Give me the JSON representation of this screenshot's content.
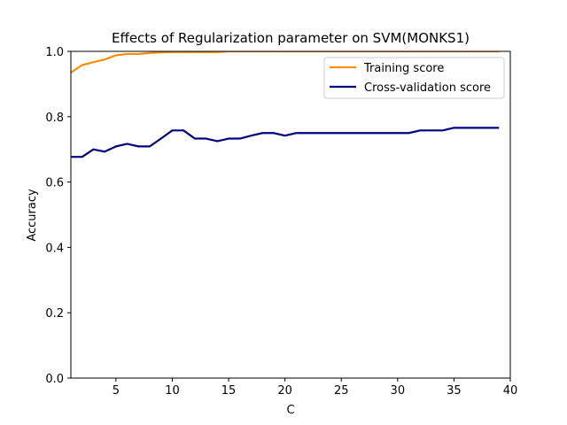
{
  "chart_data": {
    "type": "line",
    "title": "Effects of Regularization parameter on SVM(MONKS1)",
    "xlabel": "C",
    "ylabel": "Accuracy",
    "xlim": [
      1,
      40
    ],
    "ylim": [
      0.0,
      1.0
    ],
    "xticks": [
      5,
      10,
      15,
      20,
      25,
      30,
      35,
      40
    ],
    "yticks": [
      0.0,
      0.2,
      0.4,
      0.6,
      0.8,
      1.0
    ],
    "xtick_labels": [
      "5",
      "10",
      "15",
      "20",
      "25",
      "30",
      "35",
      "40"
    ],
    "ytick_labels": [
      "0.0",
      "0.2",
      "0.4",
      "0.6",
      "0.8",
      "1.0"
    ],
    "grid": false,
    "legend_position": "top-right",
    "x": [
      1,
      2,
      3,
      4,
      5,
      6,
      7,
      8,
      9,
      10,
      11,
      12,
      13,
      14,
      15,
      16,
      17,
      18,
      19,
      20,
      21,
      22,
      23,
      24,
      25,
      26,
      27,
      28,
      29,
      30,
      31,
      32,
      33,
      34,
      35,
      36,
      37,
      38,
      39
    ],
    "series": [
      {
        "name": "Training score",
        "color": "#ff8c00",
        "values": [
          0.935,
          0.958,
          0.967,
          0.975,
          0.988,
          0.992,
          0.992,
          0.995,
          0.997,
          0.998,
          0.998,
          0.998,
          0.998,
          0.998,
          1.0,
          1.0,
          1.0,
          1.0,
          1.0,
          1.0,
          1.0,
          1.0,
          1.0,
          1.0,
          1.0,
          1.0,
          1.0,
          1.0,
          1.0,
          1.0,
          1.0,
          1.0,
          1.0,
          1.0,
          1.0,
          1.0,
          1.0,
          1.0,
          1.0
        ]
      },
      {
        "name": "Cross-validation score",
        "color": "#000080",
        "values": [
          0.677,
          0.677,
          0.7,
          0.693,
          0.709,
          0.717,
          0.709,
          0.709,
          0.733,
          0.758,
          0.758,
          0.733,
          0.733,
          0.725,
          0.733,
          0.733,
          0.742,
          0.75,
          0.75,
          0.742,
          0.75,
          0.75,
          0.75,
          0.75,
          0.75,
          0.75,
          0.75,
          0.75,
          0.75,
          0.75,
          0.75,
          0.758,
          0.758,
          0.758,
          0.766,
          0.766,
          0.766,
          0.766,
          0.766
        ]
      }
    ]
  }
}
